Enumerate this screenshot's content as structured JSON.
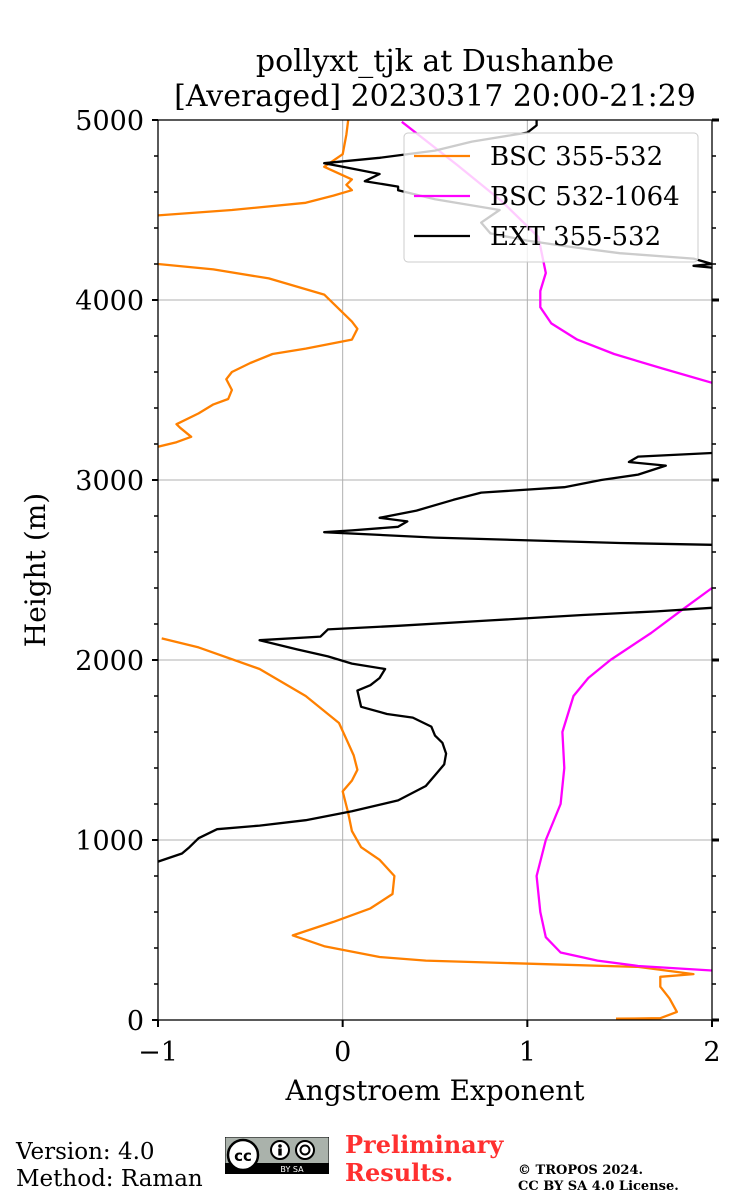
{
  "chart_data": {
    "type": "line",
    "title": "pollyxt_tjk at Dushanbe",
    "subtitle": "[Averaged] 20230317 20:00-21:29",
    "xlabel": "Angstroem Exponent",
    "ylabel": "Height (m)",
    "xlim": [
      -1,
      2
    ],
    "ylim": [
      0,
      5000
    ],
    "xticks": [
      -1,
      0,
      1,
      2
    ],
    "xtick_labels": [
      "−1",
      "0",
      "1",
      "2"
    ],
    "yticks": [
      0,
      1000,
      2000,
      3000,
      4000,
      5000
    ],
    "ytick_labels": [
      "0",
      "1000",
      "2000",
      "3000",
      "4000",
      "5000"
    ],
    "grid": true,
    "legend_position": "top-right",
    "series": [
      {
        "name": "BSC 355-532",
        "color": "#ff8000",
        "segments": [
          [
            [
              1.48,
              7
            ],
            [
              1.72,
              10
            ],
            [
              1.81,
              45
            ],
            [
              1.77,
              120
            ],
            [
              1.72,
              185
            ],
            [
              1.72,
              240
            ],
            [
              1.9,
              255
            ],
            [
              1.6,
              295
            ],
            [
              1.1,
              310
            ],
            [
              0.45,
              330
            ],
            [
              0.2,
              350
            ],
            [
              -0.1,
              410
            ],
            [
              -0.27,
              470
            ],
            [
              -0.05,
              545
            ],
            [
              0.15,
              620
            ],
            [
              0.27,
              700
            ],
            [
              0.28,
              800
            ],
            [
              0.2,
              890
            ],
            [
              0.1,
              960
            ],
            [
              0.05,
              1050
            ],
            [
              0.03,
              1150
            ],
            [
              0.0,
              1270
            ],
            [
              0.05,
              1330
            ],
            [
              0.08,
              1390
            ],
            [
              0.06,
              1470
            ],
            [
              0.02,
              1560
            ],
            [
              -0.02,
              1650
            ],
            [
              -0.2,
              1800
            ],
            [
              -0.45,
              1950
            ],
            [
              -0.78,
              2070
            ],
            [
              -0.98,
              2120
            ]
          ],
          [
            [
              -1.0,
              3185
            ],
            [
              -0.9,
              3210
            ],
            [
              -0.82,
              3240
            ],
            [
              -0.88,
              3290
            ],
            [
              -0.9,
              3310
            ],
            [
              -0.78,
              3370
            ],
            [
              -0.7,
              3420
            ],
            [
              -0.62,
              3450
            ],
            [
              -0.6,
              3500
            ],
            [
              -0.63,
              3560
            ],
            [
              -0.6,
              3600
            ],
            [
              -0.5,
              3650
            ],
            [
              -0.38,
              3700
            ],
            [
              -0.2,
              3730
            ],
            [
              0.05,
              3780
            ],
            [
              0.08,
              3840
            ],
            [
              0.05,
              3880
            ],
            [
              -0.1,
              4030
            ],
            [
              -0.4,
              4120
            ],
            [
              -0.7,
              4170
            ],
            [
              -1.0,
              4200
            ]
          ],
          [
            [
              -1.0,
              4470
            ],
            [
              -0.6,
              4500
            ],
            [
              -0.2,
              4540
            ],
            [
              -0.05,
              4580
            ],
            [
              0.05,
              4610
            ],
            [
              0.02,
              4640
            ],
            [
              0.05,
              4670
            ],
            [
              -0.1,
              4740
            ],
            [
              0.0,
              4810
            ],
            [
              0.02,
              4920
            ],
            [
              0.03,
              5000
            ]
          ]
        ]
      },
      {
        "name": "BSC 532-1064",
        "color": "#ff00ff",
        "segments": [
          [
            [
              2.0,
              275
            ],
            [
              1.6,
              300
            ],
            [
              1.38,
              330
            ],
            [
              1.18,
              375
            ],
            [
              1.1,
              460
            ],
            [
              1.07,
              600
            ],
            [
              1.05,
              800
            ],
            [
              1.1,
              1000
            ],
            [
              1.18,
              1200
            ],
            [
              1.2,
              1400
            ],
            [
              1.19,
              1600
            ],
            [
              1.25,
              1800
            ],
            [
              1.33,
              1900
            ],
            [
              1.45,
              2000
            ],
            [
              1.67,
              2150
            ],
            [
              1.84,
              2280
            ],
            [
              2.0,
              2400
            ]
          ],
          [
            [
              2.0,
              3540
            ],
            [
              1.73,
              3620
            ],
            [
              1.47,
              3700
            ],
            [
              1.27,
              3780
            ],
            [
              1.13,
              3870
            ],
            [
              1.07,
              3960
            ],
            [
              1.07,
              4050
            ],
            [
              1.1,
              4150
            ],
            [
              1.06,
              4350
            ],
            [
              0.86,
              4550
            ],
            [
              0.62,
              4750
            ],
            [
              0.32,
              4990
            ]
          ]
        ]
      },
      {
        "name": "EXT 355-532",
        "color": "#000000",
        "segments": [
          [
            [
              -1.0,
              880
            ],
            [
              -0.87,
              925
            ],
            [
              -0.83,
              960
            ],
            [
              -0.78,
              1010
            ],
            [
              -0.68,
              1060
            ],
            [
              -0.45,
              1080
            ],
            [
              -0.2,
              1110
            ],
            [
              0.05,
              1160
            ],
            [
              0.3,
              1220
            ],
            [
              0.45,
              1300
            ],
            [
              0.5,
              1360
            ],
            [
              0.55,
              1420
            ],
            [
              0.56,
              1480
            ],
            [
              0.54,
              1540
            ],
            [
              0.5,
              1580
            ],
            [
              0.48,
              1630
            ],
            [
              0.38,
              1680
            ],
            [
              0.24,
              1700
            ],
            [
              0.1,
              1740
            ],
            [
              0.08,
              1830
            ],
            [
              0.15,
              1860
            ],
            [
              0.2,
              1900
            ],
            [
              0.23,
              1950
            ],
            [
              0.05,
              1980
            ],
            [
              -0.08,
              2020
            ],
            [
              -0.25,
              2060
            ],
            [
              -0.45,
              2110
            ],
            [
              -0.12,
              2130
            ],
            [
              -0.08,
              2170
            ],
            [
              0.3,
              2190
            ],
            [
              0.8,
              2220
            ],
            [
              1.3,
              2250
            ],
            [
              1.7,
              2270
            ],
            [
              2.0,
              2290
            ]
          ],
          [
            [
              2.0,
              2640
            ],
            [
              1.5,
              2650
            ],
            [
              0.5,
              2680
            ],
            [
              -0.1,
              2710
            ],
            [
              0.05,
              2720
            ],
            [
              0.3,
              2740
            ],
            [
              0.35,
              2770
            ],
            [
              0.2,
              2790
            ],
            [
              0.4,
              2830
            ],
            [
              0.6,
              2890
            ],
            [
              0.75,
              2930
            ],
            [
              1.2,
              2960
            ],
            [
              1.4,
              3000
            ],
            [
              1.6,
              3030
            ],
            [
              1.75,
              3080
            ],
            [
              1.55,
              3100
            ],
            [
              1.6,
              3130
            ],
            [
              2.0,
              3150
            ]
          ],
          [
            [
              2.0,
              4180
            ],
            [
              1.9,
              4190
            ],
            [
              2.0,
              4200
            ],
            [
              1.9,
              4230
            ],
            [
              1.5,
              4260
            ],
            [
              1.2,
              4300
            ],
            [
              1.0,
              4330
            ],
            [
              0.8,
              4370
            ],
            [
              0.75,
              4430
            ],
            [
              0.85,
              4500
            ],
            [
              0.5,
              4560
            ],
            [
              0.3,
              4610
            ],
            [
              0.3,
              4630
            ],
            [
              0.12,
              4660
            ],
            [
              0.2,
              4700
            ],
            [
              0.0,
              4740
            ],
            [
              -0.1,
              4760
            ],
            [
              0.2,
              4790
            ],
            [
              0.5,
              4830
            ],
            [
              0.7,
              4880
            ],
            [
              1.0,
              4930
            ],
            [
              1.05,
              4970
            ],
            [
              1.05,
              5000
            ]
          ]
        ]
      }
    ]
  },
  "footer": {
    "version": "Version: 4.0",
    "method": "Method: Raman",
    "preliminary_line1": "Preliminary",
    "preliminary_line2": "Results.",
    "copyright_line1": "© TROPOS 2024.",
    "copyright_line2": "CC BY SA 4.0 License.",
    "license_badge_text": "BY SA"
  }
}
